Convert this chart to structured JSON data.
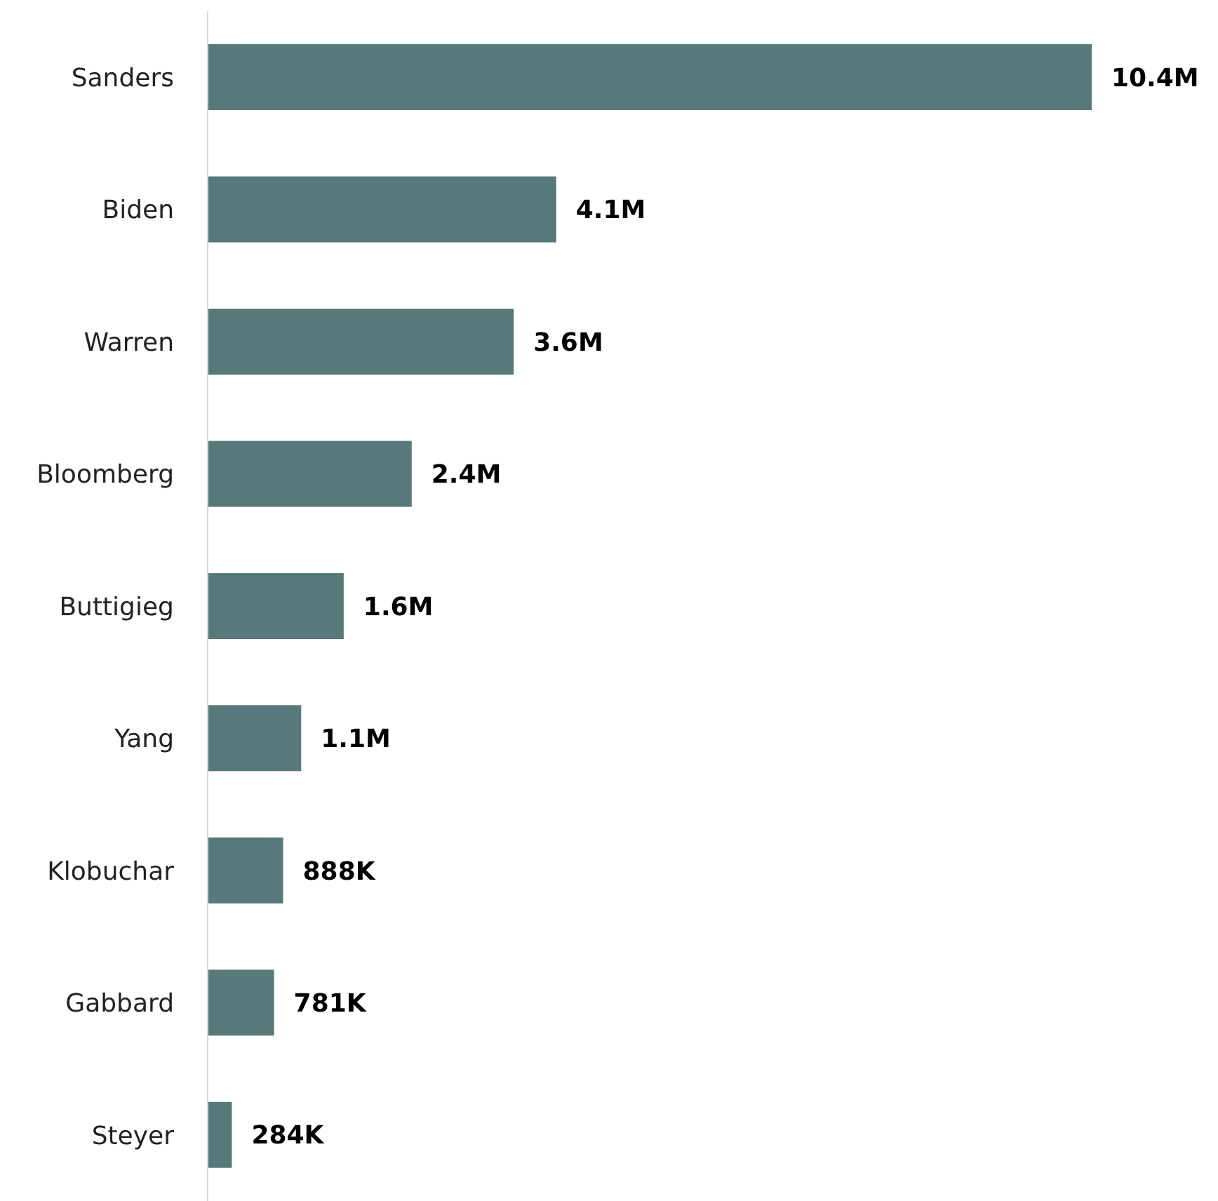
{
  "chart_data": {
    "type": "bar",
    "orientation": "horizontal",
    "categories": [
      "Sanders",
      "Biden",
      "Warren",
      "Bloomberg",
      "Buttigieg",
      "Yang",
      "Klobuchar",
      "Gabbard",
      "Steyer"
    ],
    "values": [
      10400000,
      4100000,
      3600000,
      2400000,
      1600000,
      1100000,
      888000,
      781000,
      284000
    ],
    "value_labels": [
      "10.4M",
      "4.1M",
      "3.6M",
      "2.4M",
      "1.6M",
      "1.1M",
      "888K",
      "781K",
      "284K"
    ],
    "color": "#58797b",
    "grid": false,
    "legend": false
  }
}
